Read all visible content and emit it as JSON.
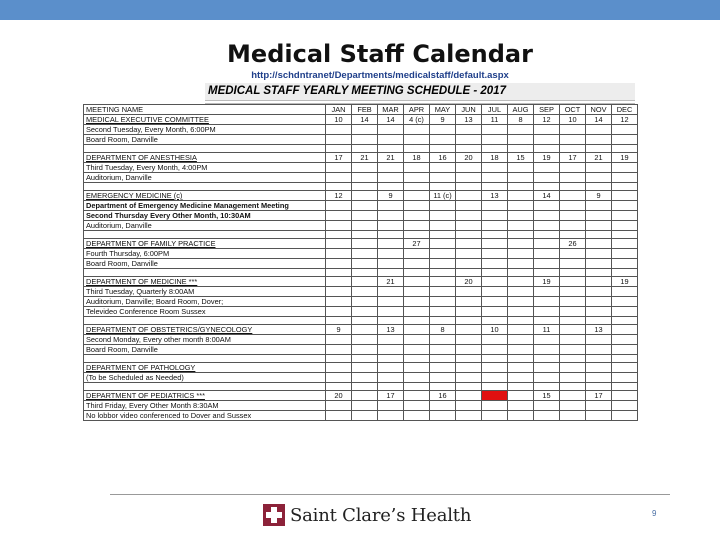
{
  "slide": {
    "title": "Medical Staff Calendar",
    "url": "http://schdntranet/Departments/medicalstaff/default.aspx",
    "page_number": "9",
    "accent_color": "#5b8fcb"
  },
  "sheet": {
    "title": "MEDICAL STAFF YEARLY MEETING SCHEDULE - 2017",
    "header_name": "MEETING NAME",
    "months": [
      "JAN",
      "FEB",
      "MAR",
      "APR",
      "MAY",
      "JUN",
      "JUL",
      "AUG",
      "SEP",
      "OCT",
      "NOV",
      "DEC"
    ]
  },
  "groups": [
    {
      "name": "MEDICAL EXECUTIVE COMMITTEE",
      "values": [
        "10",
        "14",
        "14",
        "4 (c)",
        "9",
        "13",
        "11",
        "8",
        "12",
        "10",
        "14",
        "12"
      ],
      "details": [
        "Second Tuesday, Every Month, 6:00PM",
        "Board Room, Danville"
      ]
    },
    {
      "name": "DEPARTMENT OF ANESTHESIA",
      "values": [
        "17",
        "21",
        "21",
        "18",
        "16",
        "20",
        "18",
        "15",
        "19",
        "17",
        "21",
        "19"
      ],
      "details": [
        "Third Tuesday, Every Month, 4:00PM",
        "Auditorium, Danville"
      ]
    },
    {
      "name": "EMERGENCY MEDICINE (c)",
      "values": [
        "12",
        "",
        "9",
        "",
        "11 (c)",
        "",
        "13",
        "",
        "14",
        "",
        "9",
        ""
      ],
      "details": [
        "Department of Emergency Medicine Management Meeting",
        "Second Thursday Every Other Month, 10:30AM",
        "Auditorium, Danville"
      ]
    },
    {
      "name": "DEPARTMENT OF FAMILY PRACTICE",
      "values": [
        "",
        "",
        "",
        "27",
        "",
        "",
        "",
        "",
        "",
        "26",
        "",
        ""
      ],
      "details": [
        "Fourth Thursday, 6:00PM",
        "Board Room, Danville"
      ]
    },
    {
      "name": "DEPARTMENT OF MEDICINE ***",
      "values": [
        "",
        "",
        "21",
        "",
        "",
        "20",
        "",
        "",
        "19",
        "",
        "",
        "19"
      ],
      "details": [
        "Third Tuesday, Quarterly 8:00AM",
        "Auditorium, Danville; Board Room, Dover;",
        "Televideo Conference Room Sussex"
      ]
    },
    {
      "name": "DEPARTMENT OF OBSTETRICS/GYNECOLOGY",
      "values": [
        "9",
        "",
        "13",
        "",
        "8",
        "",
        "10",
        "",
        "11",
        "",
        "13",
        ""
      ],
      "details": [
        "Second Monday, Every other month 8:00AM",
        "Board Room, Danville"
      ]
    },
    {
      "name": "DEPARTMENT OF PATHOLOGY",
      "values": [
        "",
        "",
        "",
        "",
        "",
        "",
        "",
        "",
        "",
        "",
        "",
        ""
      ],
      "details": [
        "(To be Scheduled as Needed)"
      ]
    },
    {
      "name": "DEPARTMENT OF PEDIATRICS ***",
      "values": [
        "20",
        "",
        "17",
        "",
        "16",
        "",
        "",
        "",
        "15",
        "",
        "17",
        ""
      ],
      "details": [
        "Third Friday, Every Other Month 8:30AM",
        "No lobbor video conferenced to Dover and Sussex"
      ]
    }
  ],
  "highlight_color": "#e01010",
  "footer": {
    "logo_text": "Saint Clare’s Health",
    "logo_color": "#8c2239"
  }
}
